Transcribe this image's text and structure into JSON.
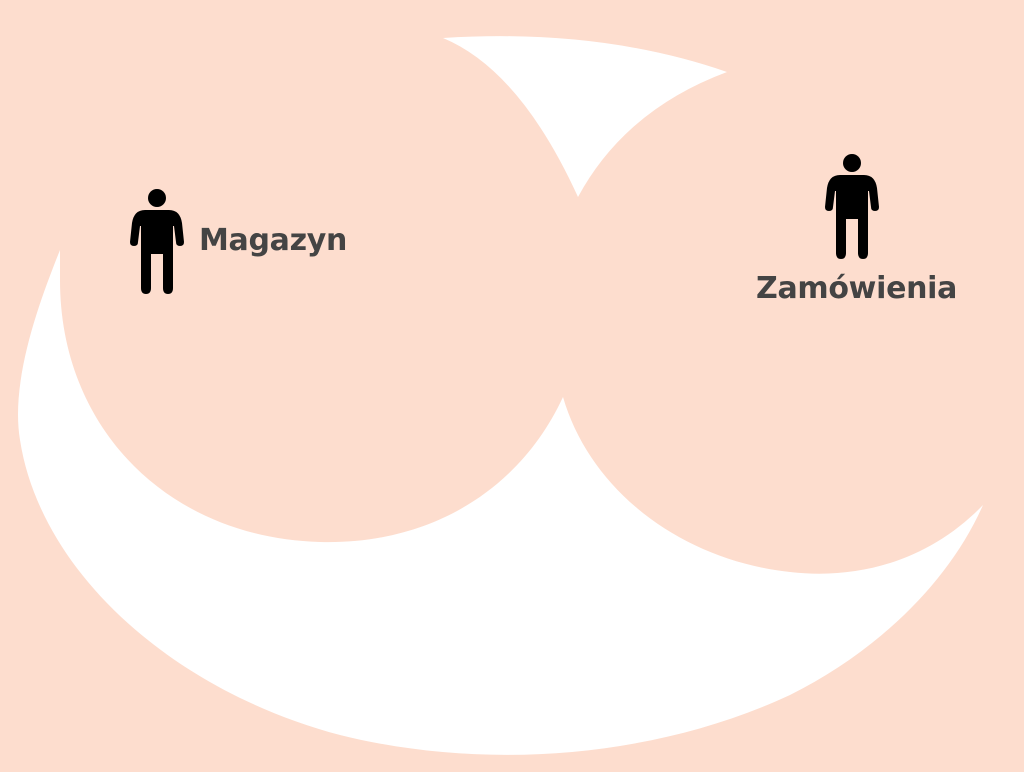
{
  "diagram": {
    "colors": {
      "background": "#FDDDCE",
      "region": "#FFFFFF",
      "actor": "#000000",
      "label": "#444444"
    },
    "actors": [
      {
        "id": "magazyn",
        "label": "Magazyn",
        "icon": "person-icon"
      },
      {
        "id": "zamowienia",
        "label": "Zamówienia",
        "icon": "person-icon"
      }
    ]
  }
}
